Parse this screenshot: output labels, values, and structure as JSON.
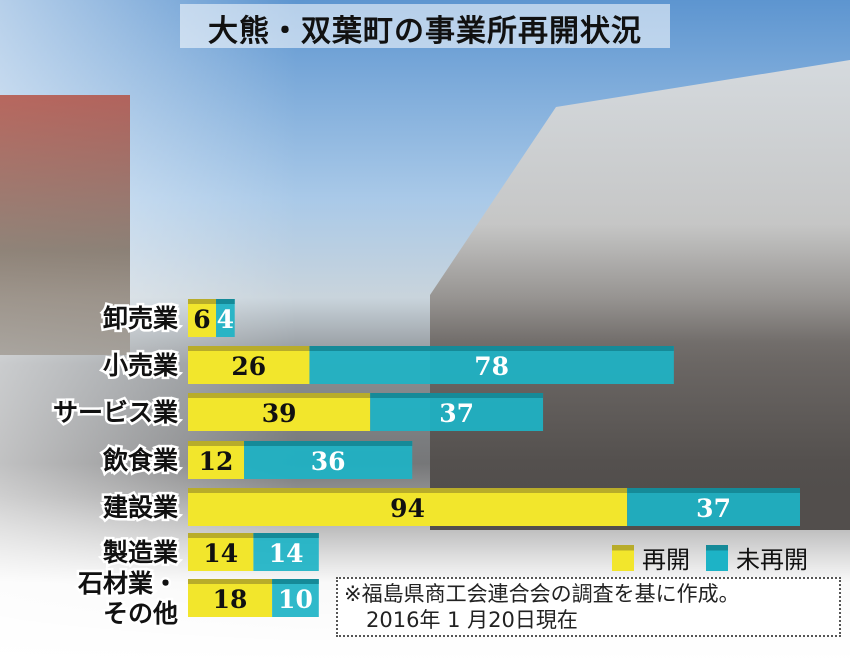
{
  "colors": {
    "reopened": "#f2e62c",
    "reopened_top": "#b8ac2a",
    "not_reopened": "#1db3c6",
    "not_reopened_top": "#158a98"
  },
  "chart_data": {
    "type": "bar",
    "stacked": true,
    "orientation": "horizontal",
    "title": "大熊・双葉町の事業所再開状況",
    "categories": [
      "卸売業",
      "小売業",
      "サービス業",
      "飲食業",
      "建設業",
      "製造業",
      "石材業・\nその他"
    ],
    "series": [
      {
        "name": "再開",
        "values": [
          6,
          26,
          39,
          12,
          94,
          14,
          18
        ]
      },
      {
        "name": "未再開",
        "values": [
          4,
          78,
          37,
          36,
          37,
          14,
          10
        ]
      }
    ],
    "legend_placement": "bottom-right",
    "grid": false
  },
  "legend": {
    "reopened": "再開",
    "not_reopened": "未再開"
  },
  "note": {
    "line1": "※福島県商工会連合会の調査を基に作成。",
    "line2": "2016年 1 月20日現在"
  }
}
